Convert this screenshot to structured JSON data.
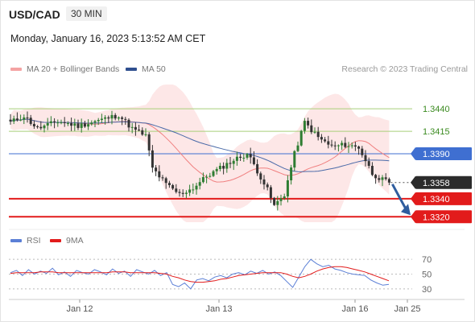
{
  "header": {
    "symbol": "USD/CAD",
    "interval": "30 MIN",
    "datetime": "Monday, January 16, 2023 5:13:52 AM CET"
  },
  "legend": {
    "ma20_label": "MA 20 + Bollinger Bands",
    "ma50_label": "MA 50",
    "rsi_label": "RSI",
    "ma9_label": "9MA",
    "research": "Research © 2023 Trading Central"
  },
  "colors": {
    "up_candle": "#2e7d32",
    "down_candle": "#333333",
    "bollinger_fill": "#fde3e3",
    "ma20": "#f08080",
    "ma50": "#4a6aa8",
    "resistance": "#a8cf7a",
    "pivot": "#3f6fd1",
    "support": "#e21b1b",
    "rsi": "#5b7fd6",
    "rsi_ma": "#e21b1b",
    "arrow": "#2f5d9e"
  },
  "chart_data": [
    {
      "type": "candlestick",
      "title": "USD/CAD 30 MIN",
      "x_ticks": [
        "Jan 12",
        "Jan 13",
        "Jan 16",
        "Jan 25"
      ],
      "ylim": [
        1.3314,
        1.3458
      ],
      "levels": [
        {
          "value": 1.344,
          "label": "1.3440",
          "kind": "resistance"
        },
        {
          "value": 1.3415,
          "label": "1.3415",
          "kind": "resistance"
        },
        {
          "value": 1.339,
          "label": "1.3390",
          "kind": "pivot"
        },
        {
          "value": 1.3358,
          "label": "1.3358",
          "kind": "last"
        },
        {
          "value": 1.334,
          "label": "1.3340",
          "kind": "support"
        },
        {
          "value": 1.332,
          "label": "1.3320",
          "kind": "support"
        }
      ],
      "price_path": [
        [
          0,
          1.3425
        ],
        [
          4,
          1.3432
        ],
        [
          8,
          1.3418
        ],
        [
          14,
          1.3426
        ],
        [
          20,
          1.3421
        ],
        [
          27,
          1.3428
        ],
        [
          32,
          1.3433
        ],
        [
          36,
          1.3418
        ],
        [
          40,
          1.341
        ],
        [
          42,
          1.3374
        ],
        [
          46,
          1.3356
        ],
        [
          50,
          1.3345
        ],
        [
          54,
          1.3352
        ],
        [
          58,
          1.3365
        ],
        [
          62,
          1.3374
        ],
        [
          66,
          1.3383
        ],
        [
          70,
          1.339
        ],
        [
          72,
          1.3378
        ],
        [
          76,
          1.335
        ],
        [
          78,
          1.3332
        ],
        [
          81,
          1.3345
        ],
        [
          84,
          1.339
        ],
        [
          87,
          1.3425
        ],
        [
          91,
          1.3408
        ],
        [
          95,
          1.3398
        ],
        [
          99,
          1.34
        ],
        [
          103,
          1.3397
        ],
        [
          107,
          1.3368
        ],
        [
          110,
          1.3361
        ],
        [
          112,
          1.3358
        ]
      ],
      "projection": {
        "from": 1.3358,
        "to": 1.332
      }
    },
    {
      "type": "line",
      "title": "RSI",
      "y_ticks": [
        30,
        50,
        70
      ],
      "ylim": [
        20,
        80
      ],
      "series": [
        {
          "name": "RSI",
          "values": [
            52,
            55,
            48,
            56,
            50,
            54,
            51,
            58,
            49,
            53,
            47,
            55,
            52,
            50,
            56,
            53,
            49,
            57,
            51,
            54,
            47,
            56,
            53,
            50,
            55,
            48,
            52,
            36,
            33,
            38,
            30,
            42,
            44,
            41,
            46,
            48,
            45,
            50,
            52,
            49,
            54,
            51,
            55,
            50,
            53,
            48,
            40,
            32,
            46,
            60,
            70,
            64,
            60,
            62,
            57,
            55,
            52,
            50,
            49,
            48,
            42,
            38,
            35,
            36
          ]
        },
        {
          "name": "9MA",
          "values": [
            51,
            52,
            52,
            52,
            52,
            53,
            53,
            53,
            52,
            52,
            52,
            52,
            52,
            52,
            52,
            52,
            52,
            53,
            53,
            53,
            52,
            52,
            52,
            52,
            52,
            51,
            50,
            47,
            45,
            42,
            40,
            39,
            39,
            40,
            41,
            43,
            44,
            46,
            48,
            49,
            50,
            51,
            52,
            52,
            52,
            52,
            50,
            47,
            45,
            47,
            50,
            54,
            57,
            59,
            60,
            60,
            59,
            57,
            55,
            53,
            50,
            47,
            44,
            41
          ]
        }
      ]
    }
  ]
}
